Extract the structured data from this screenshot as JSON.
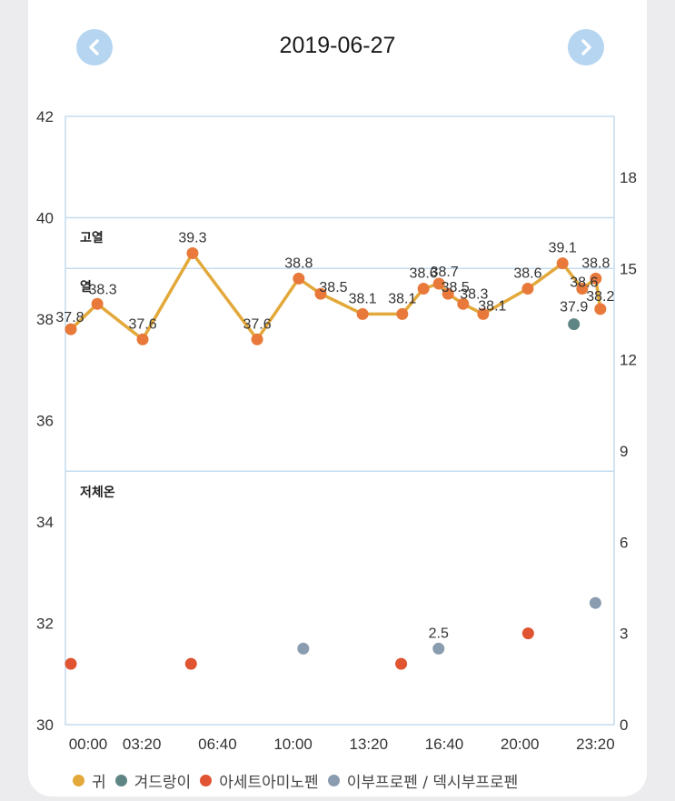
{
  "header": {
    "date": "2019-06-27",
    "prev_icon": "chevron-left-icon",
    "next_icon": "chevron-right-icon"
  },
  "colors": {
    "ear": "#e3a83a",
    "ear_dot": "#e8793a",
    "armpit": "#5e8583",
    "acetaminophen": "#e05432",
    "ibuprofen": "#8a9caf",
    "grid": "#c4dcee",
    "button": "#b5d5f1"
  },
  "chart_data": {
    "type": "line",
    "title": "",
    "xlabel": "",
    "ylabel": "",
    "y2label": "",
    "xlim": [
      0,
      1440
    ],
    "ylim": [
      30,
      42
    ],
    "y2lim": [
      0,
      20
    ],
    "x_ticks": [
      {
        "value": 0,
        "label": "00:00"
      },
      {
        "value": 200,
        "label": "03:20"
      },
      {
        "value": 400,
        "label": "06:40"
      },
      {
        "value": 600,
        "label": "10:00"
      },
      {
        "value": 800,
        "label": "13:20"
      },
      {
        "value": 1000,
        "label": "16:40"
      },
      {
        "value": 1200,
        "label": "20:00"
      },
      {
        "value": 1400,
        "label": "23:20"
      }
    ],
    "y_ticks": [
      "30",
      "32",
      "34",
      "36",
      "38",
      "40",
      "42"
    ],
    "y2_ticks": [
      "0",
      "3",
      "6",
      "9",
      "12",
      "15",
      "18"
    ],
    "bands": [
      {
        "label": "고열",
        "from": 39,
        "to": 40
      },
      {
        "label": "열",
        "from": 35,
        "to": 39
      },
      {
        "label": "저체온",
        "from": 30,
        "to": 35
      }
    ],
    "series": [
      {
        "name": "귀",
        "axis": "left",
        "x": [
          12,
          82,
          202,
          334,
          505,
          615,
          673,
          784,
          889,
          945,
          986,
          1010,
          1050,
          1103,
          1221,
          1313,
          1365,
          1401,
          1413
        ],
        "values": [
          37.8,
          38.3,
          37.6,
          39.3,
          37.6,
          38.8,
          38.5,
          38.1,
          38.1,
          38.6,
          38.7,
          38.5,
          38.3,
          38.1,
          38.6,
          39.1,
          38.6,
          38.8,
          38.2
        ],
        "labels": [
          "37.8",
          "38.3",
          "37.6",
          "39.3",
          "37.6",
          "38.8",
          "38.5",
          "38.1",
          "38.1",
          "38.6",
          "38.7",
          "38.5",
          "38.3",
          "38.1",
          "38.6",
          "39.1",
          "38.6",
          "38.8",
          "38.2"
        ]
      },
      {
        "name": "겨드랑이",
        "axis": "left",
        "x": [
          1343
        ],
        "values": [
          37.9
        ],
        "labels": [
          "37.9"
        ]
      },
      {
        "name": "아세트아미노펜",
        "axis": "right",
        "x": [
          12,
          330,
          886,
          1222
        ],
        "values": [
          2,
          2,
          2,
          3
        ],
        "labels": [
          "",
          "",
          "",
          ""
        ]
      },
      {
        "name": "이부프로펜 / 덱시부프로펜",
        "axis": "right",
        "x": [
          627,
          985,
          1400
        ],
        "values": [
          2.5,
          2.5,
          4
        ],
        "labels": [
          "",
          "2.5",
          ""
        ]
      }
    ],
    "legend": [
      "귀",
      "겨드랑이",
      "아세트아미노펜",
      "이부프로펜 / 덱시부프로펜"
    ],
    "legend_position": "bottom"
  }
}
